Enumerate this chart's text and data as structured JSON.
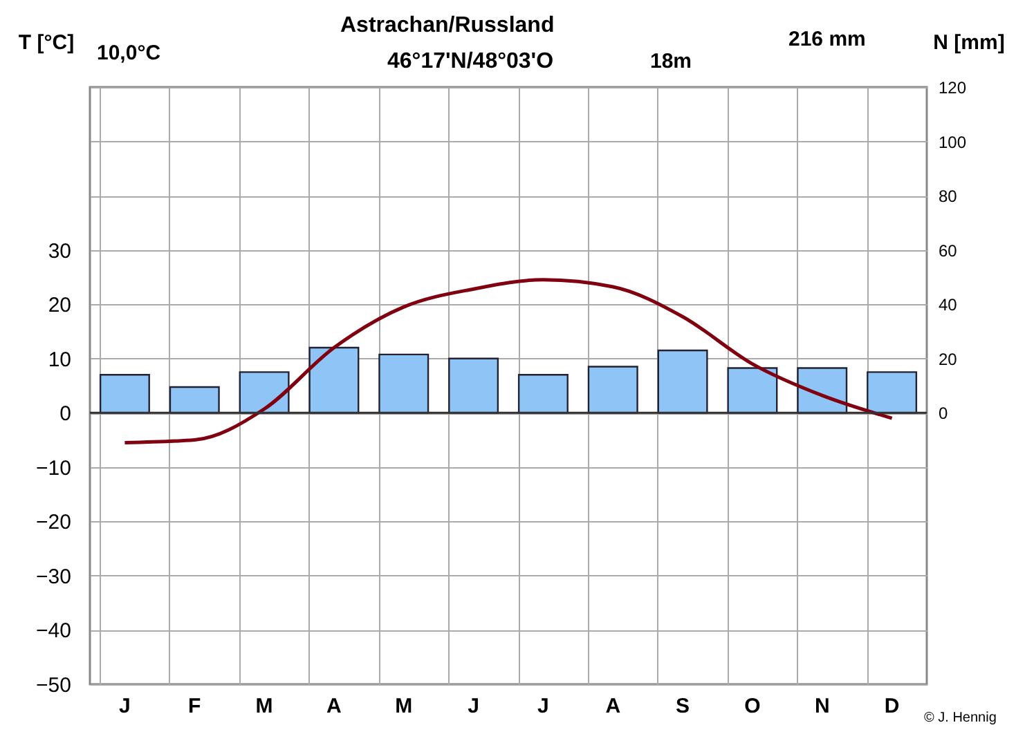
{
  "chart_data": {
    "type": "bar",
    "title": "Astrachan/Russland",
    "subtitle": "46°17'N/48°03'O",
    "ylabel": "T [°C]",
    "y2label": "N [mm]",
    "categories": [
      "J",
      "F",
      "M",
      "A",
      "M",
      "J",
      "J",
      "A",
      "S",
      "O",
      "N",
      "D"
    ],
    "series": [
      {
        "type": "bar",
        "axis": "y2",
        "color": "#8fc4f7",
        "values": [
          14,
          9.5,
          15,
          24,
          21.5,
          20,
          14,
          17,
          23,
          16.5,
          16.5,
          15
        ]
      },
      {
        "type": "line",
        "axis": "y",
        "color": "#800010",
        "values": [
          -5.5,
          -5,
          0.7,
          12,
          19.5,
          22.8,
          24.5,
          23.2,
          17.7,
          9,
          3.2,
          -1
        ]
      }
    ],
    "ylim": [
      -50,
      60
    ],
    "yticks": [
      -50,
      -40,
      -30,
      -20,
      -10,
      0,
      10,
      20,
      30
    ],
    "y2lim": [
      -100,
      120
    ],
    "y2ticks": [
      0,
      20,
      40,
      60,
      80,
      100,
      120
    ],
    "grid": true,
    "marker": "none",
    "line_style": "solid",
    "annotations": [
      "10,0°C",
      "18m",
      "216 mm",
      "© J. Hennig"
    ]
  }
}
